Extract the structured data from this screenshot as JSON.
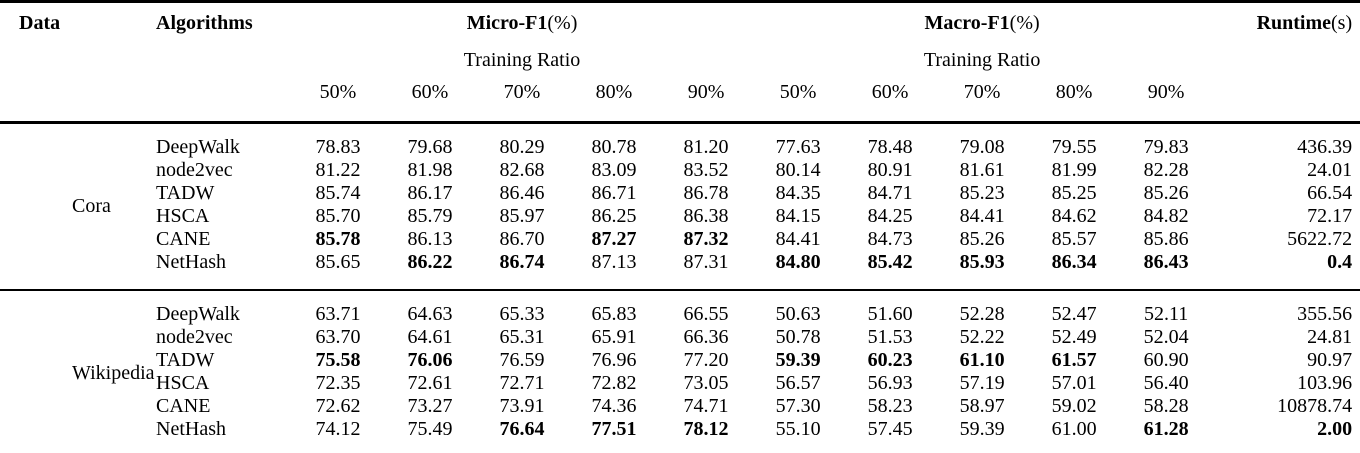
{
  "table": {
    "headers": {
      "data": "Data",
      "algorithms": "Algorithms",
      "micro_label": "Micro-F1",
      "micro_suffix": "(%)",
      "macro_label": "Macro-F1",
      "macro_suffix": "(%)",
      "runtime_label": "Runtime",
      "runtime_suffix": "(s)",
      "training_ratio": "Training Ratio",
      "ratios": [
        "50%",
        "60%",
        "70%",
        "80%",
        "90%"
      ]
    },
    "groups": [
      {
        "dataset": "Cora",
        "rows": [
          {
            "algorithm": "DeepWalk",
            "values": [
              "78.83",
              "79.68",
              "80.29",
              "80.78",
              "81.20",
              "77.63",
              "78.48",
              "79.08",
              "79.55",
              "79.83",
              "436.39"
            ],
            "bold": [
              false,
              false,
              false,
              false,
              false,
              false,
              false,
              false,
              false,
              false,
              false
            ]
          },
          {
            "algorithm": "node2vec",
            "values": [
              "81.22",
              "81.98",
              "82.68",
              "83.09",
              "83.52",
              "80.14",
              "80.91",
              "81.61",
              "81.99",
              "82.28",
              "24.01"
            ],
            "bold": [
              false,
              false,
              false,
              false,
              false,
              false,
              false,
              false,
              false,
              false,
              false
            ]
          },
          {
            "algorithm": "TADW",
            "values": [
              "85.74",
              "86.17",
              "86.46",
              "86.71",
              "86.78",
              "84.35",
              "84.71",
              "85.23",
              "85.25",
              "85.26",
              "66.54"
            ],
            "bold": [
              false,
              false,
              false,
              false,
              false,
              false,
              false,
              false,
              false,
              false,
              false
            ]
          },
          {
            "algorithm": "HSCA",
            "values": [
              "85.70",
              "85.79",
              "85.97",
              "86.25",
              "86.38",
              "84.15",
              "84.25",
              "84.41",
              "84.62",
              "84.82",
              "72.17"
            ],
            "bold": [
              false,
              false,
              false,
              false,
              false,
              false,
              false,
              false,
              false,
              false,
              false
            ]
          },
          {
            "algorithm": "CANE",
            "values": [
              "85.78",
              "86.13",
              "86.70",
              "87.27",
              "87.32",
              "84.41",
              "84.73",
              "85.26",
              "85.57",
              "85.86",
              "5622.72"
            ],
            "bold": [
              true,
              false,
              false,
              true,
              true,
              false,
              false,
              false,
              false,
              false,
              false
            ]
          },
          {
            "algorithm": "NetHash",
            "values": [
              "85.65",
              "86.22",
              "86.74",
              "87.13",
              "87.31",
              "84.80",
              "85.42",
              "85.93",
              "86.34",
              "86.43",
              "0.4"
            ],
            "bold": [
              false,
              true,
              true,
              false,
              false,
              true,
              true,
              true,
              true,
              true,
              true
            ]
          }
        ]
      },
      {
        "dataset": "Wikipedia",
        "rows": [
          {
            "algorithm": "DeepWalk",
            "values": [
              "63.71",
              "64.63",
              "65.33",
              "65.83",
              "66.55",
              "50.63",
              "51.60",
              "52.28",
              "52.47",
              "52.11",
              "355.56"
            ],
            "bold": [
              false,
              false,
              false,
              false,
              false,
              false,
              false,
              false,
              false,
              false,
              false
            ]
          },
          {
            "algorithm": "node2vec",
            "values": [
              "63.70",
              "64.61",
              "65.31",
              "65.91",
              "66.36",
              "50.78",
              "51.53",
              "52.22",
              "52.49",
              "52.04",
              "24.81"
            ],
            "bold": [
              false,
              false,
              false,
              false,
              false,
              false,
              false,
              false,
              false,
              false,
              false
            ]
          },
          {
            "algorithm": "TADW",
            "values": [
              "75.58",
              "76.06",
              "76.59",
              "76.96",
              "77.20",
              "59.39",
              "60.23",
              "61.10",
              "61.57",
              "60.90",
              "90.97"
            ],
            "bold": [
              true,
              true,
              false,
              false,
              false,
              true,
              true,
              true,
              true,
              false,
              false
            ]
          },
          {
            "algorithm": "HSCA",
            "values": [
              "72.35",
              "72.61",
              "72.71",
              "72.82",
              "73.05",
              "56.57",
              "56.93",
              "57.19",
              "57.01",
              "56.40",
              "103.96"
            ],
            "bold": [
              false,
              false,
              false,
              false,
              false,
              false,
              false,
              false,
              false,
              false,
              false
            ]
          },
          {
            "algorithm": "CANE",
            "values": [
              "72.62",
              "73.27",
              "73.91",
              "74.36",
              "74.71",
              "57.30",
              "58.23",
              "58.97",
              "59.02",
              "58.28",
              "10878.74"
            ],
            "bold": [
              false,
              false,
              false,
              false,
              false,
              false,
              false,
              false,
              false,
              false,
              false
            ]
          },
          {
            "algorithm": "NetHash",
            "values": [
              "74.12",
              "75.49",
              "76.64",
              "77.51",
              "78.12",
              "55.10",
              "57.45",
              "59.39",
              "61.00",
              "61.28",
              "2.00"
            ],
            "bold": [
              false,
              false,
              true,
              true,
              true,
              false,
              false,
              false,
              false,
              true,
              true
            ]
          }
        ]
      }
    ]
  }
}
